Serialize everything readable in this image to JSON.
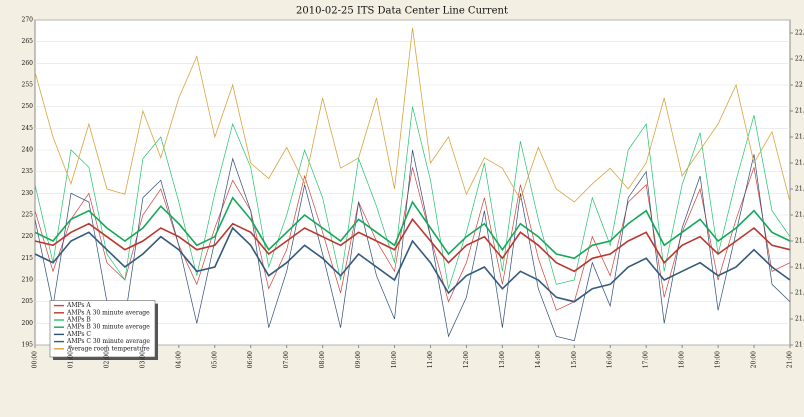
{
  "chart_data": {
    "type": "line",
    "title": "2010-02-25 ITS Data Center Line Current",
    "xlim": [
      0,
      21
    ],
    "xticks": [
      {
        "value": 0,
        "label": "00:00"
      },
      {
        "value": 1,
        "label": "01:00"
      },
      {
        "value": 2,
        "label": "02:00"
      },
      {
        "value": 3,
        "label": "03:00"
      },
      {
        "value": 4,
        "label": "04:00"
      },
      {
        "value": 5,
        "label": "05:00"
      },
      {
        "value": 6,
        "label": "06:00"
      },
      {
        "value": 7,
        "label": "07:00"
      },
      {
        "value": 8,
        "label": "08:00"
      },
      {
        "value": 9,
        "label": "09:00"
      },
      {
        "value": 10,
        "label": "10:00"
      },
      {
        "value": 11,
        "label": "11:00"
      },
      {
        "value": 12,
        "label": "12:00"
      },
      {
        "value": 13,
        "label": "13:00"
      },
      {
        "value": 14,
        "label": "14:00"
      },
      {
        "value": 15,
        "label": "15:00"
      },
      {
        "value": 16,
        "label": "16:00"
      },
      {
        "value": 17,
        "label": "17:00"
      },
      {
        "value": 18,
        "label": "18:00"
      },
      {
        "value": 19,
        "label": "19:00"
      },
      {
        "value": 20,
        "label": "20:00"
      },
      {
        "value": 21,
        "label": "21:00"
      }
    ],
    "ylim": [
      195,
      270
    ],
    "yticks": [
      195,
      200,
      205,
      210,
      215,
      220,
      225,
      230,
      235,
      240,
      245,
      250,
      255,
      260,
      265,
      270
    ],
    "y2lim": [
      21.0,
      22.25
    ],
    "y2ticks": [
      21.0,
      21.1,
      21.2,
      21.3,
      21.4,
      21.5,
      21.6,
      21.7,
      21.8,
      21.9,
      22.0,
      22.1,
      22.2
    ],
    "grid": true,
    "legend": "lower left",
    "x": [
      0,
      0.5,
      1,
      1.5,
      2,
      2.5,
      3,
      3.5,
      4,
      4.5,
      5,
      5.5,
      6,
      6.5,
      7,
      7.5,
      8,
      8.5,
      9,
      9.5,
      10,
      10.5,
      11,
      11.5,
      12,
      12.5,
      13,
      13.5,
      14,
      14.5,
      15,
      15.5,
      16,
      16.5,
      17,
      17.5,
      18,
      18.5,
      19,
      19.5,
      20,
      20.5,
      21
    ],
    "series": [
      {
        "name": "AMPs A",
        "color": "#d0413a",
        "width": 0.7,
        "values": [
          226,
          212,
          224,
          230,
          214,
          210,
          225,
          231,
          218,
          209,
          222,
          233,
          226,
          208,
          217,
          234,
          221,
          207,
          228,
          219,
          212,
          236,
          220,
          205,
          214,
          229,
          209,
          232,
          215,
          203,
          205,
          220,
          211,
          228,
          232,
          206,
          221,
          231,
          210,
          224,
          236,
          212,
          214
        ]
      },
      {
        "name": "AMPs B",
        "color": "#22c46e",
        "width": 0.7,
        "values": [
          232,
          214,
          240,
          236,
          216,
          210,
          238,
          243,
          228,
          211,
          230,
          246,
          236,
          213,
          225,
          240,
          229,
          210,
          238,
          227,
          214,
          250,
          233,
          208,
          221,
          237,
          212,
          242,
          224,
          209,
          210,
          229,
          218,
          240,
          246,
          212,
          232,
          244,
          216,
          233,
          248,
          226,
          220
        ]
      },
      {
        "name": "AMPs C",
        "color": "#2e4d78",
        "width": 0.7,
        "values": [
          224,
          204,
          230,
          228,
          205,
          201,
          229,
          233,
          218,
          200,
          219,
          238,
          226,
          199,
          212,
          232,
          216,
          199,
          228,
          211,
          201,
          240,
          220,
          197,
          206,
          226,
          199,
          230,
          208,
          197,
          196,
          214,
          204,
          229,
          235,
          200,
          222,
          234,
          203,
          221,
          239,
          209,
          205
        ]
      },
      {
        "name": "Average room temperature",
        "color": "#d9a441",
        "width": 0.8,
        "axis": "y2",
        "values": [
          22.05,
          21.8,
          21.62,
          21.85,
          21.6,
          21.58,
          21.9,
          21.72,
          21.95,
          22.11,
          21.8,
          22.0,
          21.7,
          21.64,
          21.76,
          21.62,
          21.95,
          21.68,
          21.72,
          21.95,
          21.6,
          22.22,
          21.7,
          21.8,
          21.58,
          21.72,
          21.68,
          21.56,
          21.76,
          21.6,
          21.55,
          21.62,
          21.68,
          21.6,
          21.7,
          21.95,
          21.65,
          21.75,
          21.85,
          22.0,
          21.7,
          21.82,
          21.55
        ]
      },
      {
        "name": "AMPs A 30 minute average",
        "color": "#b8392f",
        "width": 1.6,
        "values": [
          219,
          218,
          221,
          223,
          220,
          217,
          219,
          222,
          220,
          217,
          218,
          223,
          221,
          216,
          219,
          222,
          220,
          218,
          221,
          219,
          217,
          224,
          219,
          214,
          218,
          220,
          215,
          221,
          218,
          214,
          212,
          215,
          216,
          219,
          221,
          214,
          218,
          220,
          216,
          219,
          222,
          218,
          217
        ]
      },
      {
        "name": "AMPs B 30 minute average",
        "color": "#16a85a",
        "width": 1.6,
        "values": [
          221,
          219,
          224,
          226,
          222,
          219,
          222,
          227,
          223,
          218,
          220,
          229,
          224,
          217,
          221,
          225,
          222,
          219,
          224,
          221,
          218,
          228,
          222,
          216,
          220,
          223,
          217,
          223,
          220,
          216,
          215,
          218,
          219,
          223,
          226,
          218,
          221,
          224,
          219,
          222,
          226,
          221,
          219
        ]
      },
      {
        "name": "AMPs C 30 minute average",
        "color": "#345a7c",
        "width": 1.6,
        "values": [
          216,
          214,
          219,
          221,
          217,
          213,
          216,
          220,
          217,
          212,
          213,
          222,
          218,
          211,
          214,
          218,
          215,
          211,
          216,
          213,
          210,
          219,
          214,
          207,
          211,
          213,
          208,
          212,
          210,
          206,
          205,
          208,
          209,
          213,
          215,
          210,
          212,
          214,
          211,
          213,
          217,
          213,
          210
        ]
      }
    ]
  }
}
